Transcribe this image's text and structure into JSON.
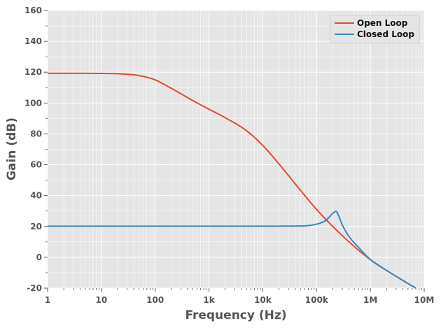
{
  "chart_data": {
    "type": "line",
    "title": "",
    "xlabel": "Frequency (Hz)",
    "ylabel": "Gain (dB)",
    "x_scale": "log",
    "xlim": [
      1,
      10000000
    ],
    "ylim": [
      -20,
      160
    ],
    "grid": true,
    "legend_position": "top-right",
    "x_ticks": [
      {
        "value": 1,
        "label": "1"
      },
      {
        "value": 10,
        "label": "10"
      },
      {
        "value": 100,
        "label": "100"
      },
      {
        "value": 1000,
        "label": "1k"
      },
      {
        "value": 10000,
        "label": "10k"
      },
      {
        "value": 100000,
        "label": "100k"
      },
      {
        "value": 1000000,
        "label": "1M"
      },
      {
        "value": 10000000,
        "label": "10M"
      }
    ],
    "y_ticks": [
      {
        "value": -20,
        "label": "-20"
      },
      {
        "value": 0,
        "label": "0"
      },
      {
        "value": 20,
        "label": "20"
      },
      {
        "value": 40,
        "label": "40"
      },
      {
        "value": 60,
        "label": "60"
      },
      {
        "value": 80,
        "label": "80"
      },
      {
        "value": 100,
        "label": "100"
      },
      {
        "value": 120,
        "label": "120"
      },
      {
        "value": 140,
        "label": "140"
      },
      {
        "value": 160,
        "label": "160"
      }
    ],
    "series": [
      {
        "name": "Open Loop",
        "color": "#E24A33",
        "x": [
          1,
          3,
          10,
          20,
          50,
          100,
          200,
          500,
          1000,
          2000,
          5000,
          10000,
          20000,
          50000,
          100000,
          200000,
          500000,
          1000000,
          2000000,
          5000000,
          7000000
        ],
        "y": [
          119.3,
          119.3,
          119.2,
          119.0,
          117.8,
          115.0,
          109.5,
          101.6,
          96.0,
          90.5,
          82.0,
          72.5,
          60.5,
          43.5,
          31.0,
          20.0,
          7.0,
          -1.5,
          -8.5,
          -17.0,
          -20.0
        ]
      },
      {
        "name": "Closed Loop",
        "color": "#348ABD",
        "x": [
          1,
          10,
          100,
          1000,
          10000,
          50000,
          100000,
          150000,
          200000,
          230000,
          260000,
          300000,
          400000,
          600000,
          1000000,
          2000000,
          5000000,
          7000000
        ],
        "y": [
          20.2,
          20.2,
          20.2,
          20.2,
          20.2,
          20.3,
          21.5,
          24.0,
          28.5,
          29.8,
          26.5,
          21.0,
          13.5,
          6.5,
          -1.5,
          -8.5,
          -17.0,
          -20.0
        ]
      }
    ]
  }
}
